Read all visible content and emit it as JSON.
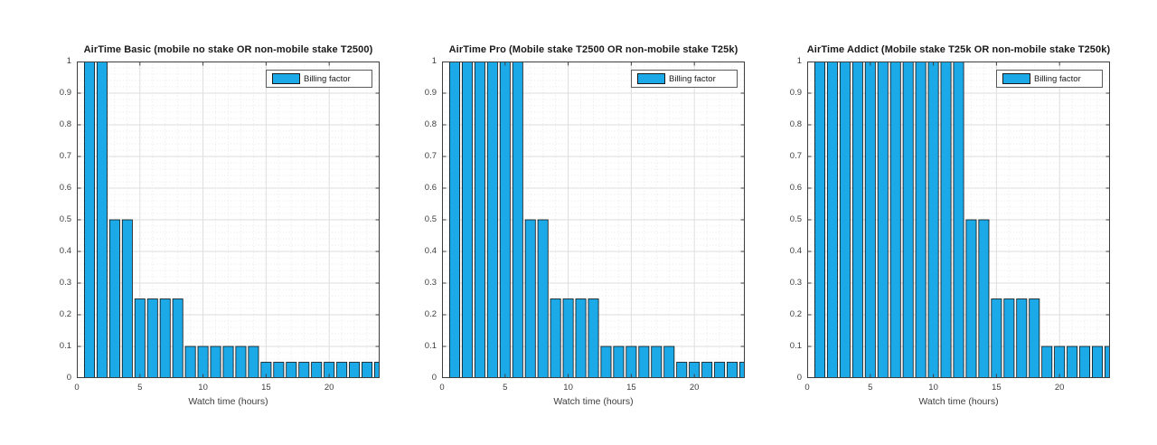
{
  "style": {
    "bar_fill": "#1CA9E8",
    "bar_edge": "#111111",
    "axis_color": "#3e3e3e",
    "grid_major": "#dedede",
    "grid_minor": "#e9e9e9",
    "background": "#ffffff"
  },
  "chart_data": [
    {
      "type": "bar",
      "title": "AirTime Basic (mobile no stake OR non-mobile stake T2500)",
      "xlabel": "Watch time (hours)",
      "ylabel": "",
      "legend": [
        "Billing factor"
      ],
      "legend_position": "northeast",
      "x": [
        1,
        2,
        3,
        4,
        5,
        6,
        7,
        8,
        9,
        10,
        11,
        12,
        13,
        14,
        15,
        16,
        17,
        18,
        19,
        20,
        21,
        22,
        23,
        24
      ],
      "values": [
        1,
        1,
        0.5,
        0.5,
        0.25,
        0.25,
        0.25,
        0.25,
        0.1,
        0.1,
        0.1,
        0.1,
        0.1,
        0.1,
        0.05,
        0.05,
        0.05,
        0.05,
        0.05,
        0.05,
        0.05,
        0.05,
        0.05,
        0.05
      ],
      "xlim": [
        0,
        24
      ],
      "ylim": [
        0,
        1
      ],
      "xticks": [
        0,
        5,
        10,
        15,
        20
      ],
      "xtick_labels": [
        "0",
        "5",
        "10",
        "15",
        "20"
      ],
      "yticks": [
        0,
        0.1,
        0.2,
        0.3,
        0.4,
        0.5,
        0.6,
        0.7,
        0.8,
        0.9,
        1
      ],
      "ytick_labels": [
        "0",
        "0.1",
        "0.2",
        "0.3",
        "0.4",
        "0.5",
        "0.6",
        "0.7",
        "0.8",
        "0.9",
        "1"
      ],
      "bar_width": 0.8,
      "grid": "major+minor"
    },
    {
      "type": "bar",
      "title": "AirTime Pro (Mobile stake T2500 OR non-mobile stake T25k)",
      "xlabel": "Watch time (hours)",
      "ylabel": "",
      "legend": [
        "Billing factor"
      ],
      "legend_position": "northeast",
      "x": [
        1,
        2,
        3,
        4,
        5,
        6,
        7,
        8,
        9,
        10,
        11,
        12,
        13,
        14,
        15,
        16,
        17,
        18,
        19,
        20,
        21,
        22,
        23,
        24
      ],
      "values": [
        1,
        1,
        1,
        1,
        1,
        1,
        0.5,
        0.5,
        0.25,
        0.25,
        0.25,
        0.25,
        0.1,
        0.1,
        0.1,
        0.1,
        0.1,
        0.1,
        0.05,
        0.05,
        0.05,
        0.05,
        0.05,
        0.05
      ],
      "xlim": [
        0,
        24
      ],
      "ylim": [
        0,
        1
      ],
      "xticks": [
        0,
        5,
        10,
        15,
        20
      ],
      "xtick_labels": [
        "0",
        "5",
        "10",
        "15",
        "20"
      ],
      "yticks": [
        0,
        0.1,
        0.2,
        0.3,
        0.4,
        0.5,
        0.6,
        0.7,
        0.8,
        0.9,
        1
      ],
      "ytick_labels": [
        "0",
        "0.1",
        "0.2",
        "0.3",
        "0.4",
        "0.5",
        "0.6",
        "0.7",
        "0.8",
        "0.9",
        "1"
      ],
      "bar_width": 0.8,
      "grid": "major+minor"
    },
    {
      "type": "bar",
      "title": "AirTime Addict (Mobile stake T25k OR non-mobile stake T250k)",
      "xlabel": "Watch time (hours)",
      "ylabel": "",
      "legend": [
        "Billing factor"
      ],
      "legend_position": "northeast",
      "x": [
        1,
        2,
        3,
        4,
        5,
        6,
        7,
        8,
        9,
        10,
        11,
        12,
        13,
        14,
        15,
        16,
        17,
        18,
        19,
        20,
        21,
        22,
        23,
        24
      ],
      "values": [
        1,
        1,
        1,
        1,
        1,
        1,
        1,
        1,
        1,
        1,
        1,
        1,
        0.5,
        0.5,
        0.25,
        0.25,
        0.25,
        0.25,
        0.1,
        0.1,
        0.1,
        0.1,
        0.1,
        0.1
      ],
      "xlim": [
        0,
        24
      ],
      "ylim": [
        0,
        1
      ],
      "xticks": [
        0,
        5,
        10,
        15,
        20
      ],
      "xtick_labels": [
        "0",
        "5",
        "10",
        "15",
        "20"
      ],
      "yticks": [
        0,
        0.1,
        0.2,
        0.3,
        0.4,
        0.5,
        0.6,
        0.7,
        0.8,
        0.9,
        1
      ],
      "ytick_labels": [
        "0",
        "0.1",
        "0.2",
        "0.3",
        "0.4",
        "0.5",
        "0.6",
        "0.7",
        "0.8",
        "0.9",
        "1"
      ],
      "bar_width": 0.8,
      "grid": "major+minor"
    }
  ]
}
